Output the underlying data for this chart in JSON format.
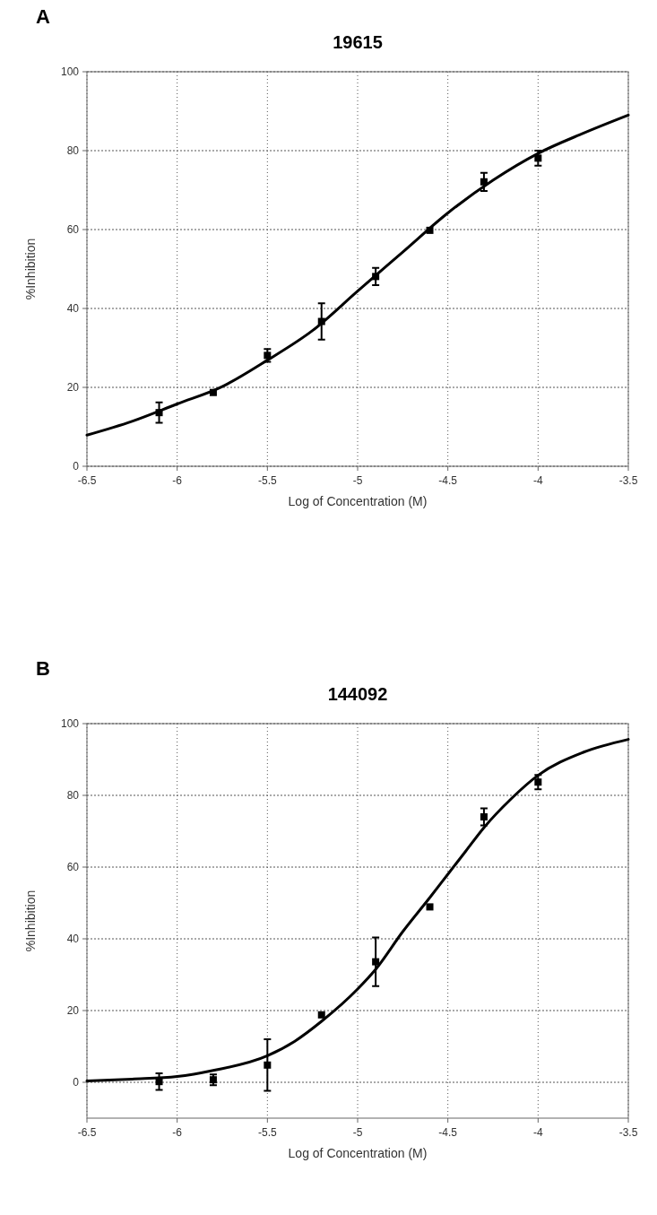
{
  "chart_data": [
    {
      "type": "scatter",
      "title": "19615",
      "xlabel": "Log of Concentration (M)",
      "ylabel": "%Inhibition",
      "annotations": [
        "A"
      ],
      "xlim": [
        -6.5,
        -3.5
      ],
      "xticks": [
        -6.5,
        -6,
        -5.5,
        -5,
        -4.5,
        -4,
        -3.5
      ],
      "ylim": [
        0,
        100
      ],
      "yticks": [
        0,
        20,
        40,
        60,
        80,
        100
      ],
      "grid": true,
      "series": [
        {
          "marker": "square",
          "color": "#000000",
          "x": [
            -6.1,
            -5.8,
            -5.5,
            -5.2,
            -4.9,
            -4.6,
            -4.3,
            -4.0
          ],
          "values": [
            13.6,
            18.7,
            28.1,
            36.7,
            48.1,
            59.8,
            72.1,
            78.1
          ],
          "errors": [
            2.6,
            null,
            1.6,
            4.6,
            2.2,
            null,
            2.3,
            1.9
          ]
        },
        {
          "type": "line",
          "color": "#000000",
          "line_style": "solid",
          "x": [
            -6.5,
            -6.25,
            -6,
            -5.75,
            -5.5,
            -5.25,
            -5,
            -4.75,
            -4.5,
            -4.25,
            -4,
            -3.75,
            -3.5
          ],
          "values": [
            7.9,
            11.4,
            15.8,
            20.2,
            26.9,
            34.4,
            44.4,
            54.3,
            64.2,
            72.5,
            79.3,
            84.4,
            89
          ]
        }
      ]
    },
    {
      "type": "scatter",
      "title": "144092",
      "xlabel": "Log of Concentration (M)",
      "ylabel": "%Inhibition",
      "annotations": [
        "B"
      ],
      "xlim": [
        -6.5,
        -3.5
      ],
      "xticks": [
        -6.5,
        -6,
        -5.5,
        -5,
        -4.5,
        -4,
        -3.5
      ],
      "ylim": [
        -10,
        100
      ],
      "yticks": [
        0,
        20,
        40,
        60,
        80,
        100
      ],
      "grid": true,
      "series": [
        {
          "marker": "square",
          "color": "#000000",
          "x": [
            -6.1,
            -5.8,
            -5.5,
            -5.2,
            -4.9,
            -4.6,
            -4.3,
            -4.0
          ],
          "values": [
            0.2,
            0.7,
            4.8,
            18.8,
            33.6,
            48.9,
            74,
            83.7
          ],
          "errors": [
            2.3,
            1.5,
            7.2,
            null,
            6.8,
            null,
            2.4,
            2
          ]
        },
        {
          "type": "line",
          "color": "#000000",
          "line_style": "solid",
          "x": [
            -6.5,
            -6.25,
            -6,
            -5.8,
            -5.5,
            -5.35,
            -5.2,
            -5,
            -4.9,
            -4.75,
            -4.6,
            -4.5,
            -4.4,
            -4.3,
            -4.15,
            -4,
            -3.75,
            -3.5
          ],
          "values": [
            0.4,
            0.9,
            1.6,
            3.3,
            7.4,
            11.4,
            17,
            26,
            31.5,
            42,
            51.5,
            58,
            64.5,
            71,
            79,
            85.6,
            92,
            95.6
          ]
        }
      ]
    }
  ]
}
